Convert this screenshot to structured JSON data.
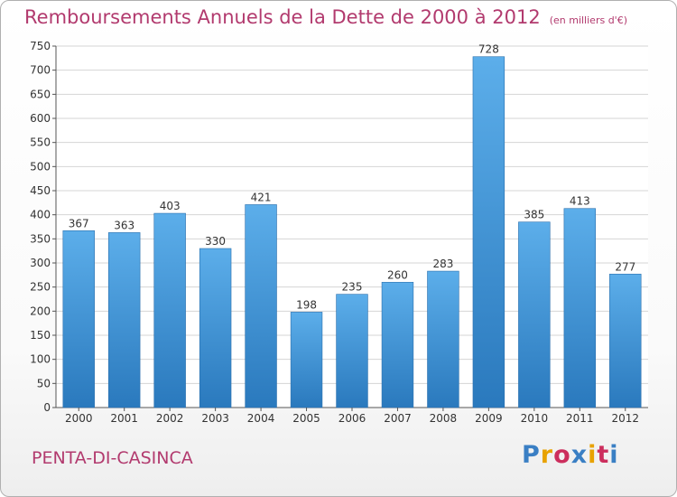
{
  "chart_data": {
    "type": "bar",
    "title": "Remboursements Annuels de la Dette de 2000 à 2012",
    "subtitle": "(en milliers d'€)",
    "categories": [
      "2000",
      "2001",
      "2002",
      "2003",
      "2004",
      "2005",
      "2006",
      "2007",
      "2008",
      "2009",
      "2010",
      "2011",
      "2012"
    ],
    "values": [
      367,
      363,
      403,
      330,
      421,
      198,
      235,
      260,
      283,
      728,
      385,
      413,
      277
    ],
    "ylim": [
      0,
      750
    ],
    "yticks": [
      0,
      50,
      100,
      150,
      200,
      250,
      300,
      350,
      400,
      450,
      500,
      550,
      600,
      650,
      700,
      750
    ],
    "grid": true,
    "bar_color": "#3d8fd6"
  },
  "footer": {
    "commune": "PENTA-DI-CASINCA",
    "logo": "Proxiti",
    "logo_colors": [
      "#3a7fc4",
      "#e8a200",
      "#cc2e5d",
      "#3a7fc4",
      "#e8a200",
      "#cc2e5d",
      "#3a7fc4"
    ]
  }
}
